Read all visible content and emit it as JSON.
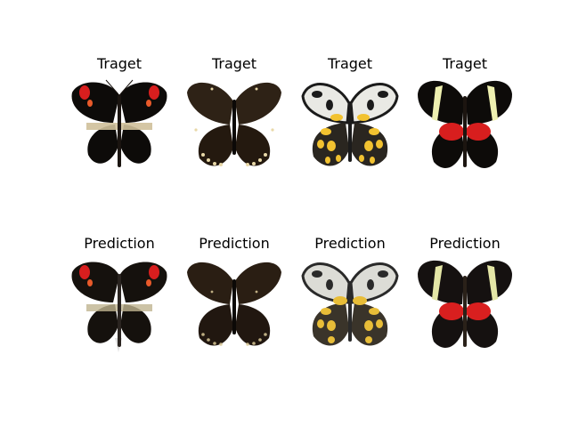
{
  "rows": [
    {
      "row": "target",
      "panels": [
        {
          "title": "Traget",
          "image": "butterfly-black-red-spots"
        },
        {
          "title": "Traget",
          "image": "butterfly-dark-brown-speckled"
        },
        {
          "title": "Traget",
          "image": "butterfly-white-yellow-spotted"
        },
        {
          "title": "Traget",
          "image": "butterfly-black-red-yellow-bar"
        }
      ]
    },
    {
      "row": "prediction",
      "panels": [
        {
          "title": "Prediction",
          "image": "butterfly-black-red-spots"
        },
        {
          "title": "Prediction",
          "image": "butterfly-dark-brown-speckled"
        },
        {
          "title": "Prediction",
          "image": "butterfly-white-yellow-spotted"
        },
        {
          "title": "Prediction",
          "image": "butterfly-black-red-yellow-bar"
        }
      ]
    }
  ],
  "colors": {
    "black_wing": "#0d0b09",
    "brown_wing": "#2e2216",
    "cream_spot": "#e8d8a8",
    "red_patch": "#d81e1e",
    "orange_patch": "#e85a2a",
    "yellow_spot": "#f2c230",
    "white_wing": "#e9e9e4",
    "tan_band": "#cfc09a"
  }
}
